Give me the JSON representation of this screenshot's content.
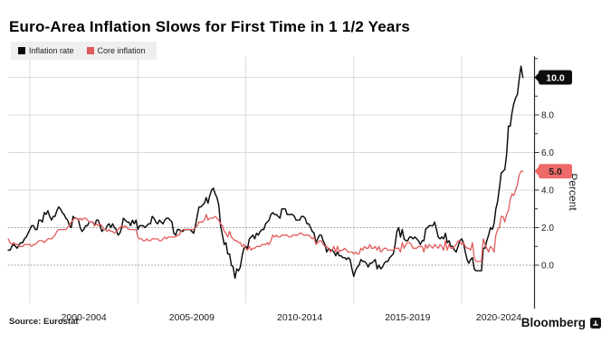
{
  "title": "Euro-Area Inflation Slows for First Time in 1 1/2 Years",
  "legend": [
    {
      "label": "Inflation rate",
      "color": "#0a0a0a"
    },
    {
      "label": "Core inflation",
      "color": "#e25b5c"
    }
  ],
  "source": "Source: Eurostat",
  "branding": "Bloomberg",
  "y_axis_label": "Percent",
  "chart_data": {
    "type": "line",
    "title": "Euro-Area Inflation Slows for First Time in 1 1/2 Years",
    "ylabel": "Percent",
    "frequency": "monthly",
    "x_start": "1999-01",
    "x_end": "2022-11",
    "ylim": [
      -2.0,
      11.2
    ],
    "grid": true,
    "legend_position": "top-left",
    "y_ticks": [
      {
        "v": 0,
        "label": "0.0"
      },
      {
        "v": 2,
        "label": "2.0"
      },
      {
        "v": 4,
        "label": "4.0"
      },
      {
        "v": 6,
        "label": "6.0"
      },
      {
        "v": 8,
        "label": "8.0"
      }
    ],
    "y_gridlines_solid": [
      4,
      6,
      8,
      10
    ],
    "y_gridlines_dotted": [
      0,
      2
    ],
    "x_gridline_years": [
      2000,
      2005,
      2010,
      2015,
      2020
    ],
    "x_tick_labels": [
      "2000-2004",
      "2005-2009",
      "2010-2014",
      "2015-2019",
      "2020-2024"
    ],
    "last_value_badges": [
      {
        "label": "10.0",
        "v": 10.0,
        "bg": "#0d0d0d",
        "fg": "#ffffff",
        "series": "Inflation rate"
      },
      {
        "label": "5.0",
        "v": 5.0,
        "bg": "#ee6a6a",
        "fg": "#1a1a1a",
        "series": "Core inflation"
      }
    ],
    "series": [
      {
        "name": "Inflation rate",
        "color": "#0a0a0a",
        "values": [
          0.8,
          0.8,
          1.0,
          1.1,
          1.0,
          0.9,
          1.1,
          1.2,
          1.2,
          1.4,
          1.5,
          1.7,
          1.9,
          2.1,
          2.1,
          1.9,
          1.9,
          2.4,
          2.4,
          2.3,
          2.8,
          2.7,
          2.9,
          2.6,
          2.4,
          2.6,
          2.6,
          2.9,
          3.1,
          3.0,
          2.8,
          2.7,
          2.5,
          2.4,
          2.1,
          2.0,
          2.6,
          2.5,
          2.5,
          2.4,
          2.0,
          1.8,
          1.9,
          2.1,
          2.1,
          2.3,
          2.3,
          2.3,
          2.1,
          2.4,
          2.4,
          2.1,
          1.8,
          1.9,
          1.9,
          2.1,
          2.2,
          2.0,
          2.2,
          2.0,
          1.9,
          1.6,
          1.7,
          2.0,
          2.5,
          2.4,
          2.3,
          2.3,
          2.1,
          2.4,
          2.2,
          2.4,
          1.9,
          2.1,
          2.1,
          2.1,
          2.0,
          2.1,
          2.2,
          2.2,
          2.6,
          2.5,
          2.3,
          2.2,
          2.4,
          2.3,
          2.2,
          2.4,
          2.5,
          2.5,
          2.4,
          2.3,
          1.7,
          1.6,
          1.9,
          1.9,
          1.8,
          1.8,
          1.9,
          1.9,
          1.9,
          1.9,
          1.8,
          1.7,
          2.1,
          2.6,
          3.1,
          3.1,
          3.2,
          3.3,
          3.6,
          3.3,
          3.7,
          4.0,
          4.1,
          3.8,
          3.6,
          3.2,
          2.1,
          1.6,
          1.1,
          1.2,
          0.6,
          0.6,
          0.0,
          -0.1,
          -0.7,
          -0.2,
          -0.3,
          -0.1,
          0.5,
          0.9,
          1.0,
          0.9,
          1.4,
          1.5,
          1.6,
          1.4,
          1.7,
          1.6,
          1.8,
          1.9,
          1.9,
          2.2,
          2.3,
          2.4,
          2.7,
          2.8,
          2.7,
          2.7,
          2.6,
          2.5,
          3.0,
          3.0,
          3.0,
          2.7,
          2.7,
          2.7,
          2.7,
          2.6,
          2.4,
          2.4,
          2.4,
          2.6,
          2.6,
          2.5,
          2.2,
          2.2,
          2.0,
          1.8,
          1.7,
          1.2,
          1.4,
          1.6,
          1.6,
          1.3,
          1.1,
          0.7,
          0.9,
          0.8,
          0.8,
          0.7,
          0.5,
          0.7,
          0.5,
          0.5,
          0.4,
          0.4,
          0.3,
          0.4,
          0.3,
          -0.2,
          -0.6,
          -0.3,
          -0.1,
          0.0,
          0.3,
          0.2,
          0.2,
          0.1,
          -0.1,
          0.1,
          0.1,
          0.2,
          0.3,
          -0.2,
          0.0,
          -0.2,
          -0.1,
          0.1,
          0.2,
          0.2,
          0.4,
          0.5,
          0.6,
          1.1,
          1.8,
          2.0,
          1.5,
          1.9,
          1.4,
          1.3,
          1.3,
          1.5,
          1.5,
          1.4,
          1.5,
          1.4,
          1.3,
          1.1,
          1.3,
          1.3,
          1.9,
          2.0,
          2.1,
          2.1,
          2.1,
          2.3,
          1.9,
          1.5,
          1.4,
          1.5,
          1.4,
          1.7,
          1.2,
          1.3,
          1.0,
          1.0,
          0.8,
          0.7,
          1.0,
          1.3,
          1.4,
          1.2,
          0.7,
          0.3,
          0.1,
          0.3,
          0.4,
          -0.2,
          -0.3,
          -0.3,
          -0.3,
          -0.3,
          0.9,
          0.9,
          1.3,
          1.6,
          2.0,
          1.9,
          2.2,
          3.0,
          3.4,
          4.1,
          4.9,
          5.0,
          5.1,
          5.9,
          7.4,
          7.4,
          8.1,
          8.6,
          8.9,
          9.1,
          9.9,
          10.6,
          10.0
        ]
      },
      {
        "name": "Core inflation",
        "color": "#e25b5c",
        "values": [
          1.4,
          1.2,
          1.1,
          1.2,
          1.1,
          1.1,
          1.0,
          1.0,
          1.0,
          1.1,
          1.1,
          1.1,
          1.1,
          1.0,
          1.1,
          1.1,
          1.2,
          1.3,
          1.3,
          1.3,
          1.2,
          1.3,
          1.4,
          1.4,
          1.4,
          1.5,
          1.6,
          1.8,
          1.9,
          1.9,
          1.9,
          1.9,
          1.9,
          2.0,
          2.1,
          2.3,
          2.4,
          2.5,
          2.5,
          2.4,
          2.5,
          2.4,
          2.5,
          2.5,
          2.4,
          2.3,
          2.3,
          2.3,
          2.1,
          2.2,
          2.1,
          2.2,
          2.1,
          1.9,
          1.9,
          1.8,
          1.9,
          1.8,
          1.8,
          1.7,
          1.8,
          1.9,
          2.0,
          2.1,
          2.0,
          2.1,
          2.0,
          1.9,
          1.9,
          1.9,
          1.9,
          1.9,
          1.5,
          1.4,
          1.4,
          1.3,
          1.3,
          1.4,
          1.3,
          1.3,
          1.4,
          1.4,
          1.4,
          1.4,
          1.3,
          1.3,
          1.4,
          1.5,
          1.4,
          1.5,
          1.5,
          1.5,
          1.5,
          1.5,
          1.6,
          1.6,
          1.8,
          1.9,
          1.9,
          1.9,
          1.9,
          1.9,
          1.9,
          1.9,
          2.0,
          2.1,
          2.3,
          2.3,
          2.3,
          2.4,
          2.7,
          2.4,
          2.5,
          2.5,
          2.5,
          2.6,
          2.5,
          2.4,
          2.2,
          2.1,
          1.8,
          1.7,
          1.5,
          1.8,
          1.5,
          1.4,
          1.3,
          1.3,
          1.2,
          1.2,
          1.0,
          1.1,
          0.9,
          0.8,
          1.0,
          0.8,
          0.9,
          0.9,
          1.0,
          1.0,
          1.0,
          1.1,
          1.1,
          1.1,
          1.2,
          1.1,
          1.3,
          1.6,
          1.5,
          1.6,
          1.5,
          1.5,
          1.6,
          1.6,
          1.6,
          1.6,
          1.5,
          1.5,
          1.6,
          1.6,
          1.6,
          1.6,
          1.7,
          1.7,
          1.6,
          1.6,
          1.6,
          1.6,
          1.5,
          1.4,
          1.5,
          1.1,
          1.2,
          1.3,
          1.3,
          1.1,
          1.0,
          1.0,
          0.9,
          0.7,
          0.8,
          1.0,
          0.7,
          1.0,
          0.7,
          0.8,
          0.8,
          0.9,
          0.8,
          0.7,
          0.7,
          0.7,
          0.6,
          0.7,
          0.6,
          0.6,
          0.9,
          0.8,
          1.0,
          0.9,
          0.9,
          1.1,
          0.9,
          0.9,
          1.0,
          0.8,
          1.0,
          0.7,
          0.8,
          0.9,
          0.9,
          0.8,
          0.8,
          0.8,
          0.8,
          0.9,
          0.9,
          0.9,
          0.7,
          1.2,
          0.9,
          1.1,
          1.2,
          1.2,
          1.1,
          0.9,
          0.9,
          0.9,
          1.0,
          1.0,
          1.0,
          0.7,
          1.1,
          0.9,
          1.1,
          1.0,
          0.9,
          1.1,
          1.0,
          0.9,
          1.1,
          1.0,
          0.8,
          1.3,
          0.8,
          1.1,
          0.9,
          0.9,
          1.0,
          1.1,
          1.3,
          1.3,
          1.1,
          1.2,
          1.0,
          0.9,
          0.9,
          0.8,
          1.2,
          0.4,
          0.2,
          0.2,
          0.2,
          0.2,
          1.4,
          1.1,
          0.9,
          0.7,
          1.0,
          0.9,
          0.7,
          1.6,
          1.9,
          2.0,
          2.6,
          2.6,
          2.3,
          2.7,
          2.9,
          3.5,
          3.8,
          3.7,
          4.0,
          4.3,
          4.8,
          5.0,
          5.0
        ]
      }
    ]
  }
}
